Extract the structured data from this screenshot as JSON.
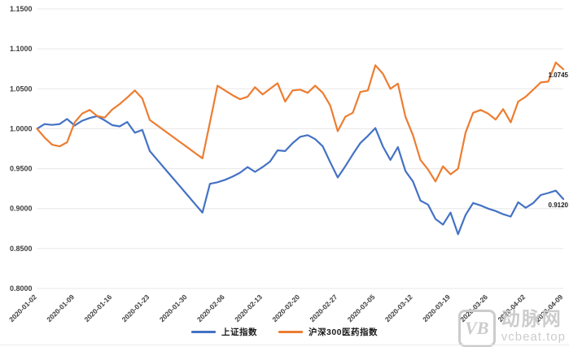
{
  "chart_data": {
    "type": "line",
    "title": "",
    "grid": true,
    "legend_position": "bottom-center",
    "ylim": [
      0.8,
      1.15
    ],
    "y_tick_labels": [
      "1.1500",
      "1.1000",
      "1.0500",
      "1.0000",
      "0.9500",
      "0.9000",
      "0.8500",
      "0.8000"
    ],
    "x_tick_every": 5,
    "x_tick_labels": [
      "2020-01-02",
      "2020-01-09",
      "2020-01-16",
      "2020-01-23",
      "2020-01-30",
      "2020-02-06",
      "2020-02-13",
      "2020-02-20",
      "2020-02-27",
      "2020-03-05",
      "2020-03-12",
      "2020-03-19",
      "2020-03-26",
      "2020-04-02",
      "2020-04-09"
    ],
    "x_dates": [
      "2020-01-02",
      "2020-01-03",
      "2020-01-06",
      "2020-01-07",
      "2020-01-08",
      "2020-01-09",
      "2020-01-10",
      "2020-01-13",
      "2020-01-14",
      "2020-01-15",
      "2020-01-16",
      "2020-01-17",
      "2020-01-20",
      "2020-01-21",
      "2020-01-22",
      "2020-01-23",
      "2020-01-24",
      "2020-01-27",
      "2020-01-28",
      "2020-01-29",
      "2020-01-30",
      "2020-01-31",
      "2020-02-03",
      "2020-02-04",
      "2020-02-05",
      "2020-02-06",
      "2020-02-07",
      "2020-02-10",
      "2020-02-11",
      "2020-02-12",
      "2020-02-13",
      "2020-02-14",
      "2020-02-17",
      "2020-02-18",
      "2020-02-19",
      "2020-02-20",
      "2020-02-21",
      "2020-02-24",
      "2020-02-25",
      "2020-02-26",
      "2020-02-27",
      "2020-02-28",
      "2020-03-02",
      "2020-03-03",
      "2020-03-04",
      "2020-03-05",
      "2020-03-06",
      "2020-03-09",
      "2020-03-10",
      "2020-03-11",
      "2020-03-12",
      "2020-03-13",
      "2020-03-16",
      "2020-03-17",
      "2020-03-18",
      "2020-03-19",
      "2020-03-20",
      "2020-03-23",
      "2020-03-24",
      "2020-03-25",
      "2020-03-26",
      "2020-03-27",
      "2020-03-30",
      "2020-03-31",
      "2020-04-01",
      "2020-04-02",
      "2020-04-03",
      "2020-04-06",
      "2020-04-07",
      "2020-04-08",
      "2020-04-09"
    ],
    "series": [
      {
        "name": "上证指数",
        "color": "#4472C4",
        "end_label": "0.9120",
        "values": [
          1.0,
          1.0058,
          1.0048,
          1.0058,
          1.0122,
          1.004,
          1.01,
          1.0135,
          1.0158,
          1.0105,
          1.0045,
          1.003,
          1.0085,
          0.995,
          0.9985,
          0.972,
          0.961,
          0.95,
          0.939,
          0.928,
          0.917,
          0.906,
          0.895,
          0.931,
          0.933,
          0.936,
          0.94,
          0.945,
          0.952,
          0.946,
          0.952,
          0.959,
          0.973,
          0.972,
          0.982,
          0.99,
          0.992,
          0.987,
          0.978,
          0.958,
          0.939,
          0.953,
          0.968,
          0.982,
          0.991,
          1.0008,
          0.978,
          0.961,
          0.977,
          0.947,
          0.934,
          0.91,
          0.905,
          0.887,
          0.88,
          0.895,
          0.868,
          0.892,
          0.907,
          0.904,
          0.9,
          0.897,
          0.893,
          0.89,
          0.908,
          0.901,
          0.907,
          0.917,
          0.9195,
          0.9225,
          0.912
        ]
      },
      {
        "name": "沪深300医药指数",
        "color": "#ED7D31",
        "end_label": "1.0745",
        "values": [
          1.0,
          0.989,
          0.98,
          0.978,
          0.983,
          1.008,
          1.019,
          1.0235,
          1.016,
          1.014,
          1.024,
          1.031,
          1.039,
          1.048,
          1.038,
          1.011,
          1.0041,
          0.9973,
          0.9904,
          0.9835,
          0.9767,
          0.9698,
          0.963,
          1.008,
          1.054,
          1.048,
          1.042,
          1.037,
          1.04,
          1.052,
          1.043,
          1.05,
          1.057,
          1.034,
          1.048,
          1.049,
          1.045,
          1.054,
          1.045,
          1.029,
          0.997,
          1.015,
          1.02,
          1.046,
          1.048,
          1.0795,
          1.069,
          1.05,
          1.0565,
          1.015,
          0.992,
          0.961,
          0.949,
          0.934,
          0.953,
          0.943,
          0.95,
          0.995,
          1.02,
          1.0235,
          1.019,
          1.0115,
          1.0245,
          1.008,
          1.034,
          1.04,
          1.049,
          1.058,
          1.059,
          1.083,
          1.0745
        ]
      }
    ],
    "style": {
      "gridline_color": "#e7e7e7",
      "axis_label_color": "#3f3f3f",
      "data_label_color": "#1a1a1a"
    }
  },
  "watermark": {
    "logo_text": "VB",
    "brand_text": "动脉网",
    "url_text": "vcbeat.top"
  }
}
